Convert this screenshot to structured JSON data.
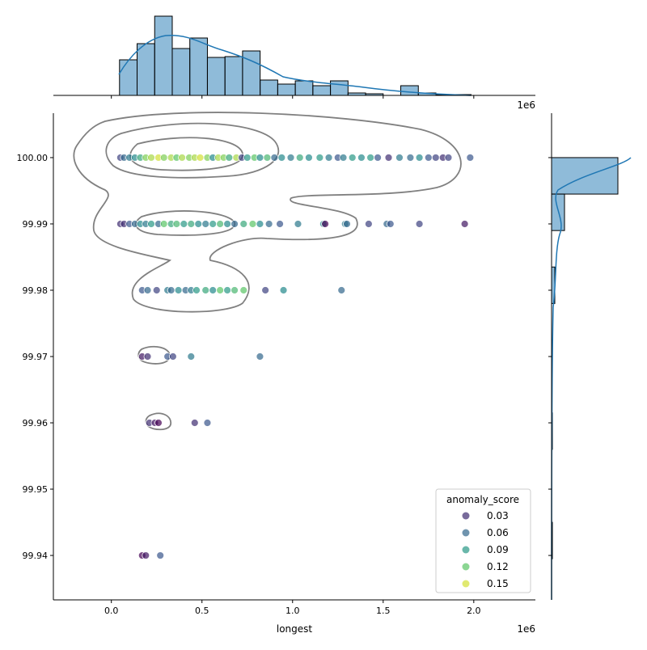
{
  "chart_data": {
    "type": "scatter",
    "xlabel": "longest",
    "ylabel": "",
    "x_offset_label": "1e6",
    "top_offset_label": "1e6",
    "xlim": [
      -0.32,
      2.34
    ],
    "ylim": [
      99.9333,
      100.0067
    ],
    "x_ticks": [
      "0.0",
      "0.5",
      "1.0",
      "1.5",
      "2.0"
    ],
    "x_tick_values": [
      0,
      0.5,
      1.0,
      1.5,
      2.0
    ],
    "y_ticks": [
      "99.94",
      "99.95",
      "99.96",
      "99.97",
      "99.98",
      "99.99",
      "100.00"
    ],
    "y_tick_values": [
      99.94,
      99.95,
      99.96,
      99.97,
      99.98,
      99.99,
      100.0
    ],
    "colormap": "viridis",
    "hue": "anomaly_score",
    "legend": {
      "title": "anomaly_score",
      "placement": "lower-right",
      "entries": [
        {
          "label": "0.03",
          "value": 0.03
        },
        {
          "label": "0.06",
          "value": 0.06
        },
        {
          "label": "0.09",
          "value": 0.09
        },
        {
          "label": "0.12",
          "value": 0.12
        },
        {
          "label": "0.15",
          "value": 0.15
        }
      ]
    },
    "points": [
      [
        0.05,
        100.0,
        0.04
      ],
      [
        0.07,
        100.0,
        0.06
      ],
      [
        0.1,
        100.0,
        0.07
      ],
      [
        0.13,
        100.0,
        0.08
      ],
      [
        0.16,
        100.0,
        0.1
      ],
      [
        0.19,
        100.0,
        0.13
      ],
      [
        0.22,
        100.0,
        0.14
      ],
      [
        0.26,
        100.0,
        0.15
      ],
      [
        0.29,
        100.0,
        0.13
      ],
      [
        0.33,
        100.0,
        0.14
      ],
      [
        0.36,
        100.0,
        0.12
      ],
      [
        0.39,
        100.0,
        0.14
      ],
      [
        0.43,
        100.0,
        0.13
      ],
      [
        0.46,
        100.0,
        0.14
      ],
      [
        0.49,
        100.0,
        0.15
      ],
      [
        0.53,
        100.0,
        0.13
      ],
      [
        0.56,
        100.0,
        0.08
      ],
      [
        0.59,
        100.0,
        0.14
      ],
      [
        0.62,
        100.0,
        0.13
      ],
      [
        0.65,
        100.0,
        0.1
      ],
      [
        0.69,
        100.0,
        0.14
      ],
      [
        0.72,
        100.0,
        0.04
      ],
      [
        0.75,
        100.0,
        0.09
      ],
      [
        0.79,
        100.0,
        0.12
      ],
      [
        0.82,
        100.0,
        0.08
      ],
      [
        0.86,
        100.0,
        0.11
      ],
      [
        0.9,
        100.0,
        0.06
      ],
      [
        0.94,
        100.0,
        0.08
      ],
      [
        0.99,
        100.0,
        0.07
      ],
      [
        1.04,
        100.0,
        0.1
      ],
      [
        1.09,
        100.0,
        0.08
      ],
      [
        1.15,
        100.0,
        0.09
      ],
      [
        1.2,
        100.0,
        0.07
      ],
      [
        1.25,
        100.0,
        0.05
      ],
      [
        1.28,
        100.0,
        0.07
      ],
      [
        1.33,
        100.0,
        0.09
      ],
      [
        1.38,
        100.0,
        0.08
      ],
      [
        1.43,
        100.0,
        0.09
      ],
      [
        1.47,
        100.0,
        0.05
      ],
      [
        1.53,
        100.0,
        0.03
      ],
      [
        1.59,
        100.0,
        0.07
      ],
      [
        1.65,
        100.0,
        0.06
      ],
      [
        1.7,
        100.0,
        0.08
      ],
      [
        1.75,
        100.0,
        0.05
      ],
      [
        1.79,
        100.0,
        0.04
      ],
      [
        1.83,
        100.0,
        0.03
      ],
      [
        1.86,
        100.0,
        0.04
      ],
      [
        1.98,
        100.0,
        0.05
      ],
      [
        0.05,
        99.99,
        0.03
      ],
      [
        0.07,
        99.99,
        0.03
      ],
      [
        0.1,
        99.99,
        0.05
      ],
      [
        0.13,
        99.99,
        0.06
      ],
      [
        0.16,
        99.99,
        0.08
      ],
      [
        0.19,
        99.99,
        0.07
      ],
      [
        0.22,
        99.99,
        0.09
      ],
      [
        0.26,
        99.99,
        0.06
      ],
      [
        0.29,
        99.99,
        0.12
      ],
      [
        0.33,
        99.99,
        0.1
      ],
      [
        0.36,
        99.99,
        0.11
      ],
      [
        0.4,
        99.99,
        0.09
      ],
      [
        0.44,
        99.99,
        0.1
      ],
      [
        0.48,
        99.99,
        0.08
      ],
      [
        0.52,
        99.99,
        0.07
      ],
      [
        0.56,
        99.99,
        0.09
      ],
      [
        0.6,
        99.99,
        0.11
      ],
      [
        0.64,
        99.99,
        0.08
      ],
      [
        0.68,
        99.99,
        0.06
      ],
      [
        0.73,
        99.99,
        0.1
      ],
      [
        0.78,
        99.99,
        0.12
      ],
      [
        0.82,
        99.99,
        0.08
      ],
      [
        0.87,
        99.99,
        0.06
      ],
      [
        0.93,
        99.99,
        0.05
      ],
      [
        1.03,
        99.99,
        0.07
      ],
      [
        1.17,
        99.99,
        0.08
      ],
      [
        1.18,
        99.99,
        0.01
      ],
      [
        1.29,
        99.99,
        0.07
      ],
      [
        1.3,
        99.99,
        0.06
      ],
      [
        1.42,
        99.99,
        0.04
      ],
      [
        1.52,
        99.99,
        0.06
      ],
      [
        1.54,
        99.99,
        0.05
      ],
      [
        1.7,
        99.99,
        0.04
      ],
      [
        1.95,
        99.99,
        0.02
      ],
      [
        0.17,
        99.98,
        0.05
      ],
      [
        0.2,
        99.98,
        0.06
      ],
      [
        0.25,
        99.98,
        0.04
      ],
      [
        0.31,
        99.98,
        0.07
      ],
      [
        0.33,
        99.98,
        0.06
      ],
      [
        0.37,
        99.98,
        0.08
      ],
      [
        0.41,
        99.98,
        0.06
      ],
      [
        0.44,
        99.98,
        0.07
      ],
      [
        0.47,
        99.98,
        0.09
      ],
      [
        0.52,
        99.98,
        0.1
      ],
      [
        0.56,
        99.98,
        0.08
      ],
      [
        0.6,
        99.98,
        0.12
      ],
      [
        0.64,
        99.98,
        0.09
      ],
      [
        0.68,
        99.98,
        0.11
      ],
      [
        0.73,
        99.98,
        0.12
      ],
      [
        0.85,
        99.98,
        0.04
      ],
      [
        0.95,
        99.98,
        0.08
      ],
      [
        1.27,
        99.98,
        0.06
      ],
      [
        0.17,
        99.97,
        0.02
      ],
      [
        0.2,
        99.97,
        0.03
      ],
      [
        0.31,
        99.97,
        0.05
      ],
      [
        0.34,
        99.97,
        0.04
      ],
      [
        0.44,
        99.97,
        0.07
      ],
      [
        0.82,
        99.97,
        0.06
      ],
      [
        0.21,
        99.96,
        0.03
      ],
      [
        0.24,
        99.96,
        0.02
      ],
      [
        0.26,
        99.96,
        0.01
      ],
      [
        0.46,
        99.96,
        0.03
      ],
      [
        0.53,
        99.96,
        0.05
      ],
      [
        0.17,
        99.94,
        0.01
      ],
      [
        0.19,
        99.94,
        0.02
      ],
      [
        0.27,
        99.94,
        0.05
      ]
    ],
    "top_histogram": {
      "bin_start": 0.045,
      "bin_width": 0.097,
      "counts": [
        44,
        64,
        98,
        58,
        71,
        47,
        48,
        55,
        19,
        14,
        18,
        12,
        18,
        3,
        2,
        0,
        12,
        3,
        1,
        1
      ]
    },
    "right_histogram": {
      "bins": [
        {
          "y0": 99.9945,
          "y1": 100.0,
          "count": 82
        },
        {
          "y0": 99.989,
          "y1": 99.9945,
          "count": 16
        },
        {
          "y0": 99.978,
          "y1": 99.9835,
          "count": 4
        },
        {
          "y0": 99.967,
          "y1": 99.9725,
          "count": 1
        },
        {
          "y0": 99.956,
          "y1": 99.9615,
          "count": 1
        },
        {
          "y0": 99.9395,
          "y1": 99.945,
          "count": 1
        }
      ]
    },
    "colors": {
      "hist": "#1f77b4",
      "contour": "#808080"
    }
  }
}
